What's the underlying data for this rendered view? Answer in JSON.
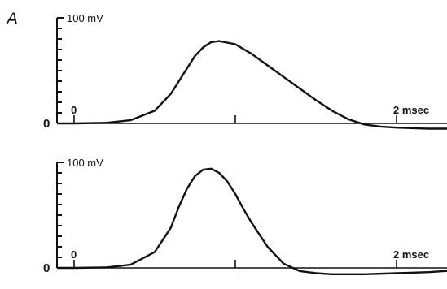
{
  "figure": {
    "panel_label": "A"
  },
  "chart_data": [
    {
      "type": "line",
      "title": "",
      "xlabel": "",
      "ylabel": "",
      "y_scale_label": "100 mV",
      "y_origin_label": "0",
      "x_tick_labels": [
        "0",
        "",
        "2 msec"
      ],
      "x_ticks": [
        0,
        1,
        2
      ],
      "xlim": [
        -0.1,
        2.6
      ],
      "ylim": [
        -10,
        100
      ],
      "grid": false,
      "legend": "none",
      "series": [
        {
          "x": [
            -0.1,
            0,
            0.2,
            0.35,
            0.5,
            0.6,
            0.7,
            0.75,
            0.8,
            0.85,
            0.9,
            1.0,
            1.1,
            1.2,
            1.3,
            1.4,
            1.5,
            1.6,
            1.7,
            1.8,
            1.9,
            2.0,
            2.2,
            2.4,
            2.6
          ],
          "y": [
            0,
            0,
            0.5,
            3,
            12,
            28,
            52,
            64,
            72,
            77,
            78,
            75,
            66,
            55,
            44,
            33,
            22,
            12,
            4,
            -1,
            -3,
            -4,
            -5,
            -5,
            -5
          ]
        }
      ]
    },
    {
      "type": "line",
      "title": "",
      "xlabel": "",
      "ylabel": "",
      "y_scale_label": "100 mV",
      "y_origin_label": "0",
      "x_tick_labels": [
        "0",
        "",
        "2 msec"
      ],
      "x_ticks": [
        0,
        1,
        2
      ],
      "xlim": [
        -0.1,
        2.6
      ],
      "ylim": [
        -10,
        100
      ],
      "grid": false,
      "legend": "none",
      "series": [
        {
          "x": [
            -0.1,
            0,
            0.2,
            0.35,
            0.5,
            0.6,
            0.65,
            0.7,
            0.75,
            0.8,
            0.85,
            0.9,
            0.95,
            1.0,
            1.05,
            1.1,
            1.2,
            1.3,
            1.4,
            1.5,
            1.6,
            1.8,
            2.0,
            2.2,
            2.4,
            2.6
          ],
          "y": [
            0,
            0,
            0.5,
            3,
            15,
            38,
            58,
            75,
            87,
            93,
            94,
            90,
            82,
            70,
            56,
            43,
            20,
            4,
            -3,
            -5,
            -6,
            -6,
            -5,
            -4,
            -2,
            0
          ]
        }
      ]
    }
  ]
}
